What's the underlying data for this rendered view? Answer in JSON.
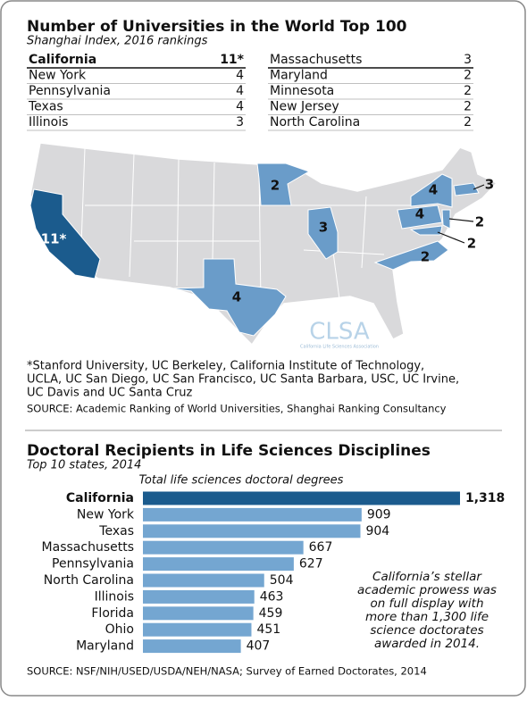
{
  "header": {
    "title": "Number of Universities in the World Top 100",
    "subtitle": "Shanghai Index, 2016 rankings"
  },
  "table": {
    "left": [
      [
        "California",
        "11*"
      ],
      [
        "New York",
        4
      ],
      [
        "Pennsylvania",
        4
      ],
      [
        "Texas",
        4
      ],
      [
        "Illinois",
        3
      ]
    ],
    "right": [
      [
        "Massachusetts",
        3
      ],
      [
        "Maryland",
        2
      ],
      [
        "Minnesota",
        2
      ],
      [
        "New Jersey",
        2
      ],
      [
        "North Carolina",
        2
      ]
    ]
  },
  "map": {
    "labels": [
      {
        "state": "California",
        "text": "11*"
      },
      {
        "state": "Minnesota",
        "text": "2"
      },
      {
        "state": "Illinois",
        "text": "3"
      },
      {
        "state": "Texas",
        "text": "4"
      },
      {
        "state": "New York",
        "text": "4"
      },
      {
        "state": "Pennsylvania",
        "text": "4"
      },
      {
        "state": "Massachusetts",
        "text": "3"
      },
      {
        "state": "New Jersey",
        "text": "2"
      },
      {
        "state": "Maryland",
        "text": "2"
      },
      {
        "state": "North Carolina",
        "text": "2"
      }
    ],
    "logo": "CLSA",
    "logo_tagline": "California Life Sciences Association"
  },
  "footnote": [
    "*Stanford University, UC Berkeley, California Institute of Technology,",
    "UCLA, UC San Diego, UC San Francisco, UC Santa Barbara, USC, UC Irvine,",
    "UC Davis and UC Santa Cruz"
  ],
  "source1": "SOURCE: Academic Ranking of World Universities, Shanghai Ranking Consultancy",
  "chart_data": {
    "type": "bar",
    "orientation": "horizontal",
    "title": "Doctoral Recipients in Life Sciences Disciplines",
    "subtitle": "Top 10 states, 2014",
    "axis_title": "Total life sciences doctoral degrees",
    "categories": [
      "California",
      "New York",
      "Texas",
      "Massachusetts",
      "Pennsylvania",
      "North Carolina",
      "Illinois",
      "Florida",
      "Ohio",
      "Maryland"
    ],
    "values": [
      1318,
      909,
      904,
      667,
      627,
      504,
      463,
      459,
      451,
      407
    ],
    "value_labels": [
      "1,318",
      "909",
      "904",
      "667",
      "627",
      "504",
      "463",
      "459",
      "451",
      "407"
    ],
    "colors": [
      "#1b5b8d",
      "#74a6d1",
      "#74a6d1",
      "#74a6d1",
      "#74a6d1",
      "#74a6d1",
      "#74a6d1",
      "#74a6d1",
      "#74a6d1",
      "#74a6d1"
    ],
    "annotation": [
      "California’s stellar",
      "academic prowess was",
      "on full display with",
      "more than 1,300 life",
      "science doctorates",
      "awarded in 2014."
    ],
    "source": "SOURCE: NSF/NIH/USED/USDA/NEH/NASA; Survey of Earned Doctorates, 2014"
  }
}
